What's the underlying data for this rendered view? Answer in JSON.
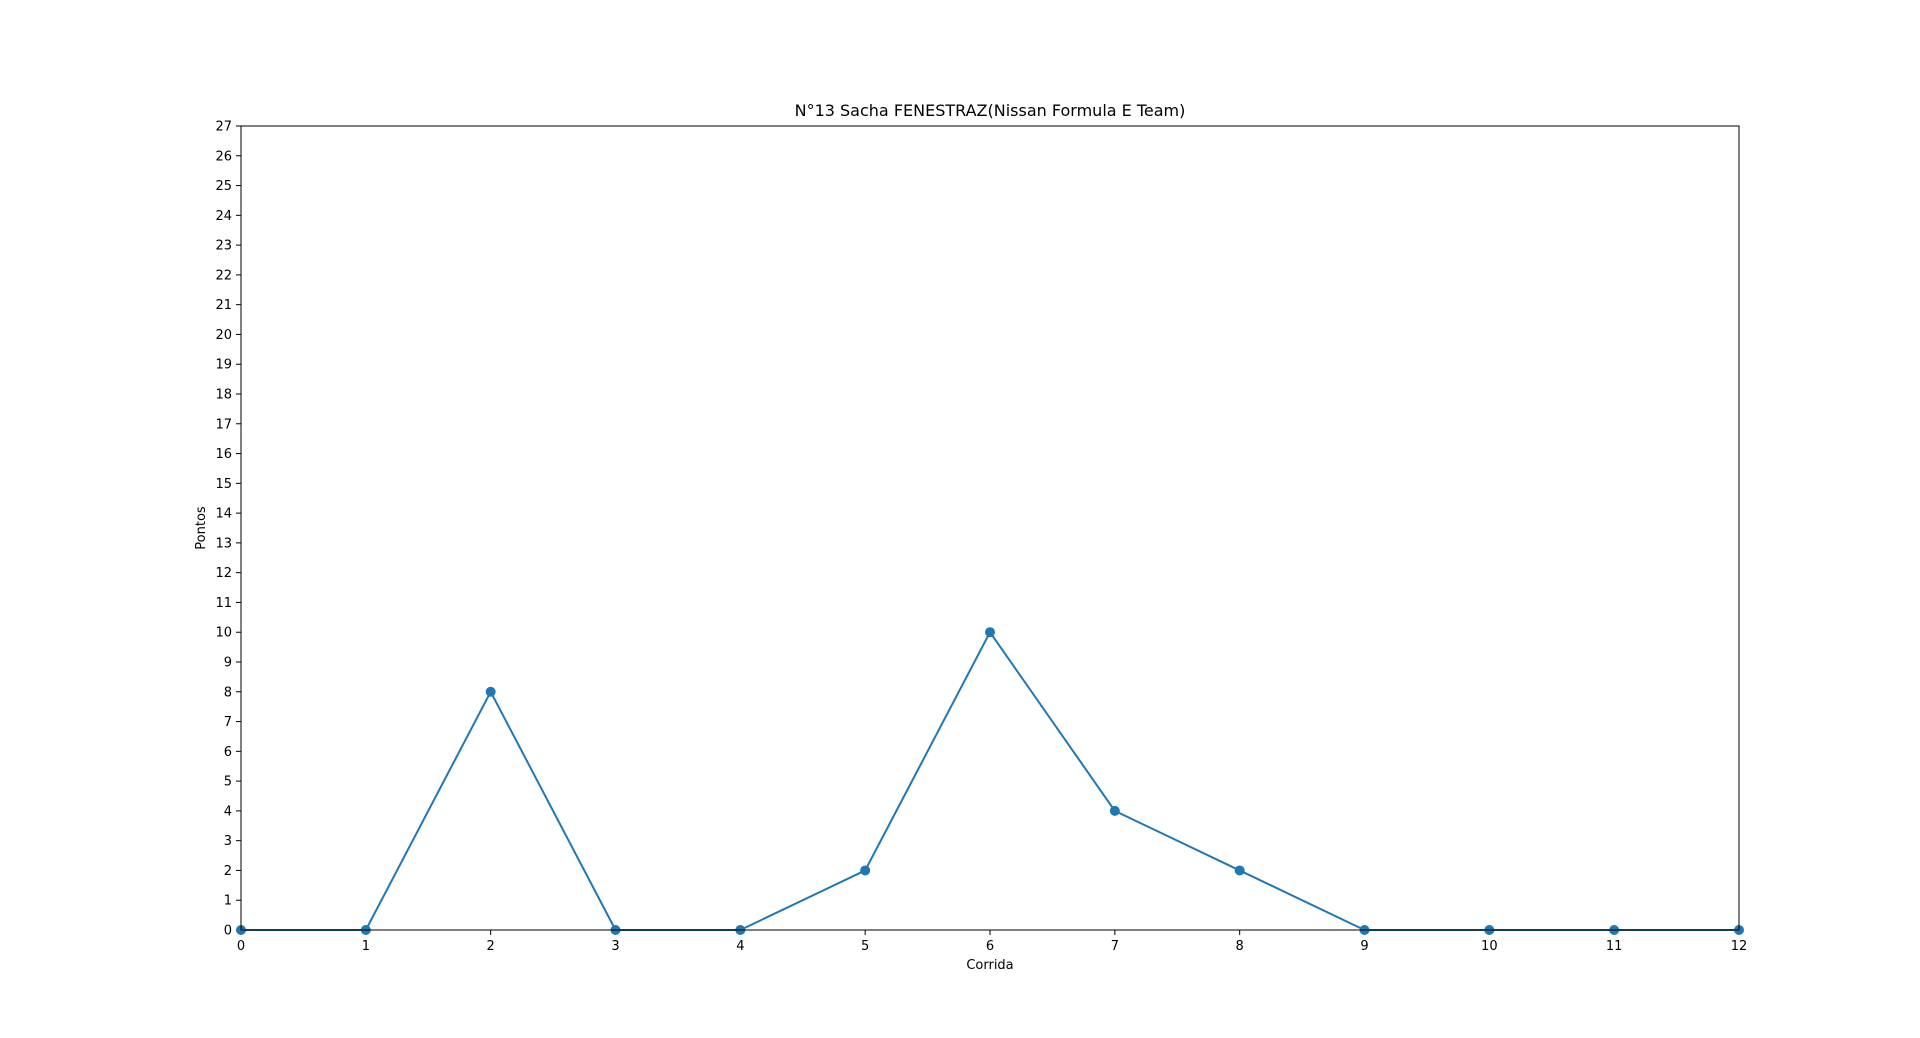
{
  "chart_data": {
    "type": "line",
    "title": "N°13 Sacha FENESTRAZ(Nissan Formula E Team)",
    "xlabel": "Corrida",
    "ylabel": "Pontos",
    "x": [
      0,
      1,
      2,
      3,
      4,
      5,
      6,
      7,
      8,
      9,
      10,
      11,
      12
    ],
    "series": [
      {
        "values": [
          0,
          0,
          8,
          0,
          0,
          2,
          10,
          4,
          2,
          0,
          0,
          0,
          0
        ],
        "color": "#1f77b4",
        "marker": "circle"
      }
    ],
    "xlim": [
      0,
      12
    ],
    "ylim": [
      0,
      27
    ],
    "xticks": [
      "0",
      "1",
      "2",
      "3",
      "4",
      "5",
      "6",
      "7",
      "8",
      "9",
      "10",
      "11",
      "12"
    ],
    "yticks": [
      "0",
      "1",
      "2",
      "3",
      "4",
      "5",
      "6",
      "7",
      "8",
      "9",
      "10",
      "11",
      "12",
      "13",
      "14",
      "15",
      "16",
      "17",
      "18",
      "19",
      "20",
      "21",
      "22",
      "23",
      "24",
      "25",
      "26",
      "27"
    ],
    "grid": false,
    "legend": "none"
  }
}
